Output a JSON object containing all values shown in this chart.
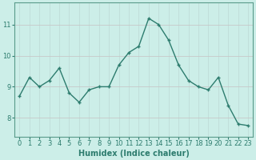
{
  "x": [
    0,
    1,
    2,
    3,
    4,
    5,
    6,
    7,
    8,
    9,
    10,
    11,
    12,
    13,
    14,
    15,
    16,
    17,
    18,
    19,
    20,
    21,
    22,
    23
  ],
  "y": [
    8.7,
    9.3,
    9.0,
    9.2,
    9.6,
    8.8,
    8.5,
    8.9,
    9.0,
    9.0,
    9.7,
    10.1,
    10.3,
    11.2,
    11.0,
    10.5,
    9.7,
    9.2,
    9.0,
    8.9,
    9.3,
    8.4,
    7.8,
    7.75
  ],
  "line_color": "#2d7c6e",
  "marker": "+",
  "marker_size": 3,
  "bg_color": "#cceee8",
  "grid_h_color": "#c8c8c8",
  "grid_v_color": "#c0ddd8",
  "xlabel": "Humidex (Indice chaleur)",
  "yticks": [
    8,
    9,
    10,
    11
  ],
  "xticks": [
    0,
    1,
    2,
    3,
    4,
    5,
    6,
    7,
    8,
    9,
    10,
    11,
    12,
    13,
    14,
    15,
    16,
    17,
    18,
    19,
    20,
    21,
    22,
    23
  ],
  "ylim": [
    7.4,
    11.7
  ],
  "xlim": [
    -0.5,
    23.5
  ],
  "xlabel_fontsize": 7,
  "tick_fontsize": 6,
  "line_width": 1.0,
  "spine_color": "#5a9a8a"
}
